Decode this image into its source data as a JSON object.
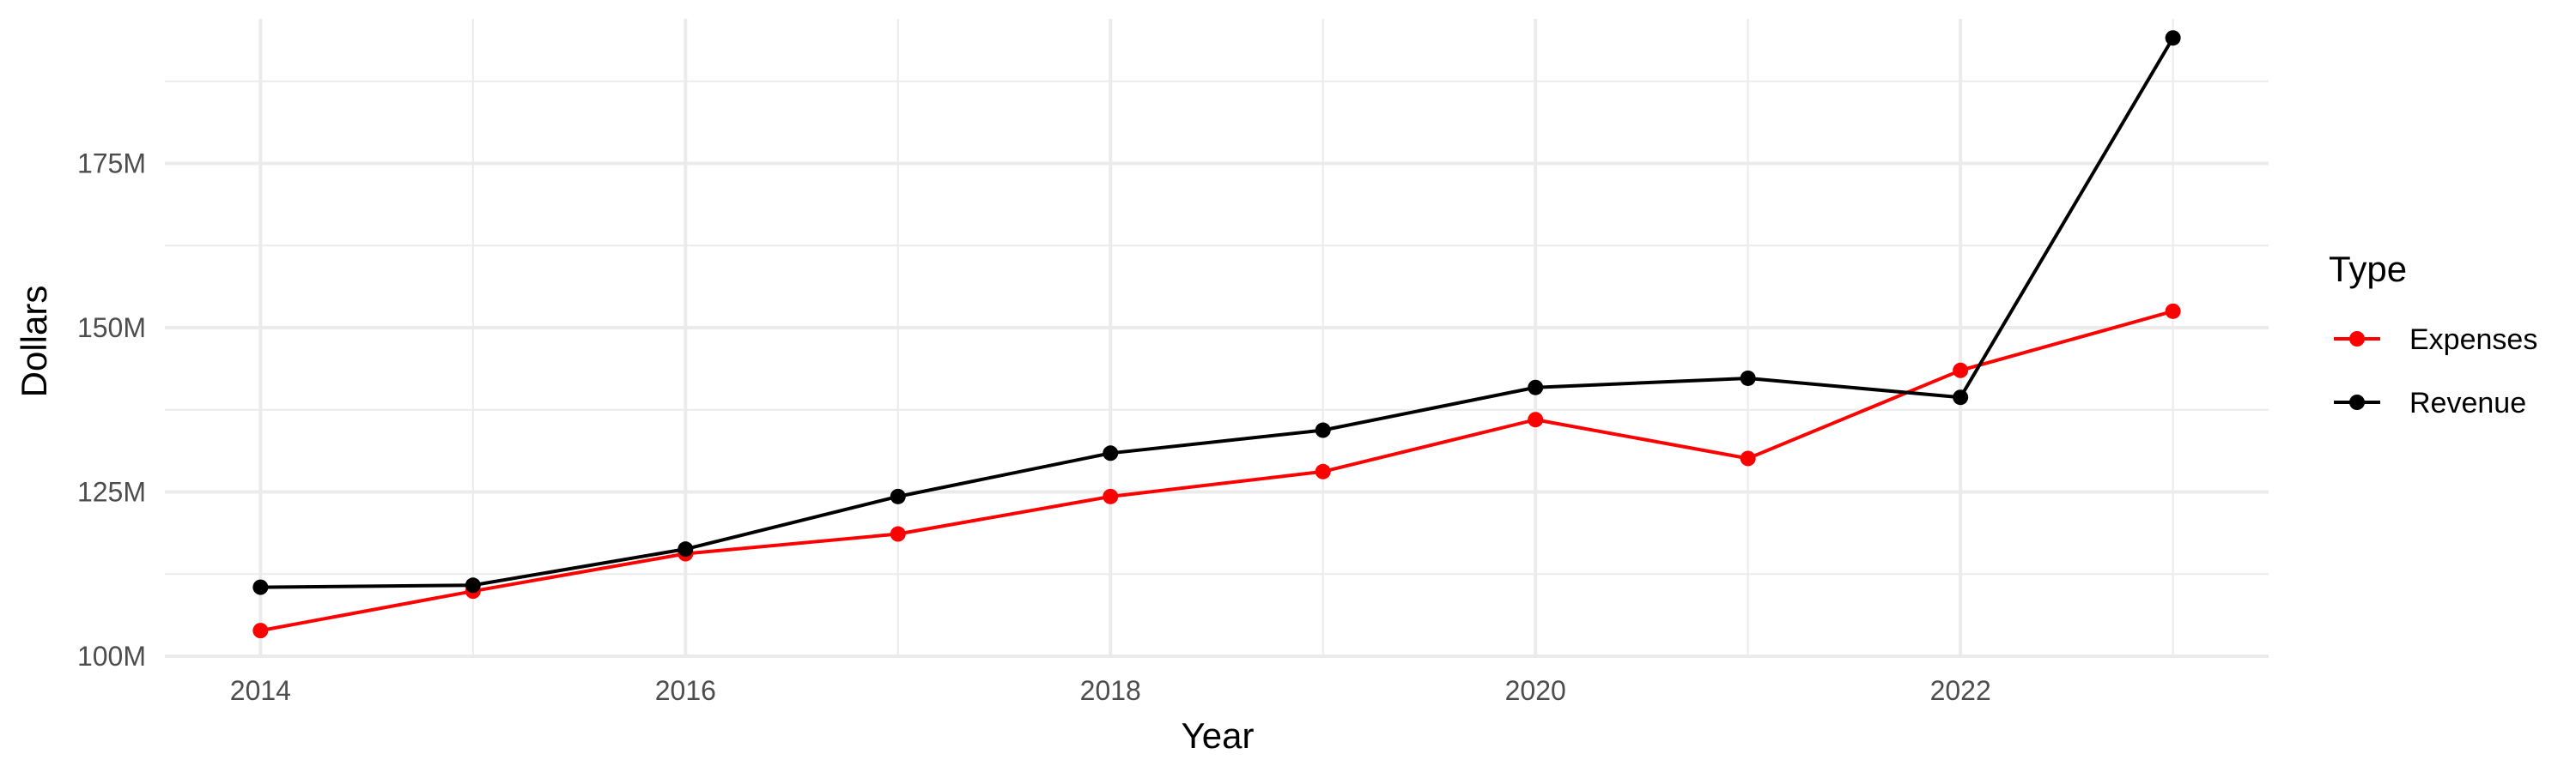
{
  "chart_data": {
    "type": "line",
    "xlabel": "Year",
    "ylabel": "Dollars",
    "x": [
      2014,
      2015,
      2016,
      2017,
      2018,
      2019,
      2020,
      2021,
      2022,
      2023
    ],
    "xlim": [
      2013.55,
      2023.45
    ],
    "ylim": [
      100,
      197
    ],
    "x_ticks": [
      2014,
      2016,
      2018,
      2020,
      2022
    ],
    "x_tick_labels": [
      "2014",
      "2016",
      "2018",
      "2020",
      "2022"
    ],
    "y_ticks": [
      100,
      125,
      150,
      175
    ],
    "y_tick_labels": [
      "100M",
      "125M",
      "150M",
      "175M"
    ],
    "y_minor_ticks": [
      112.5,
      137.5,
      162.5,
      187.5
    ],
    "grid": true,
    "legend": {
      "title": "Type",
      "placement": "right"
    },
    "series": [
      {
        "name": "Expenses",
        "color": "#ff0000",
        "values": [
          103.9,
          109.9,
          115.6,
          118.6,
          124.3,
          128.1,
          136.0,
          130.1,
          143.5,
          152.5
        ]
      },
      {
        "name": "Revenue",
        "color": "#000000",
        "values": [
          110.5,
          110.8,
          116.3,
          124.3,
          130.9,
          134.4,
          140.9,
          142.3,
          139.4,
          194.1
        ]
      }
    ]
  }
}
